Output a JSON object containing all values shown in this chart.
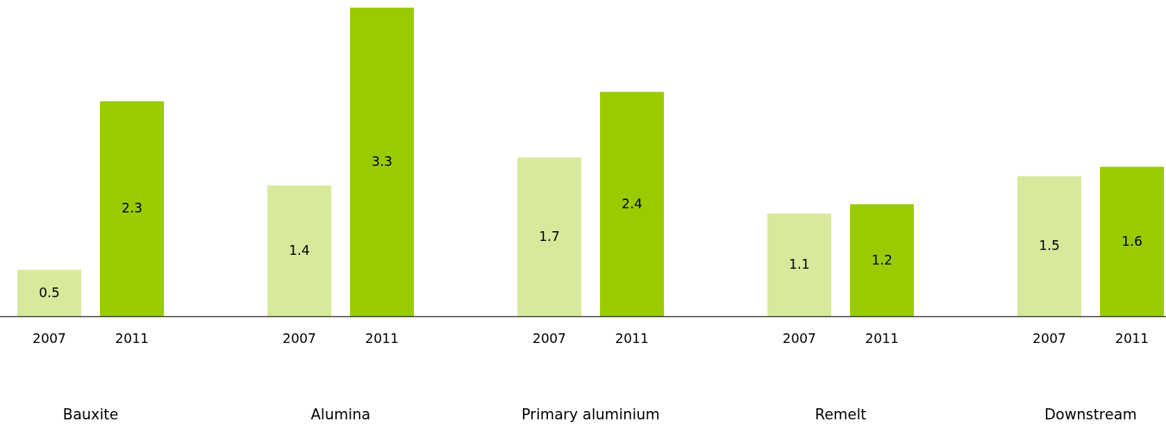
{
  "chart_data": {
    "type": "bar",
    "categories": [
      "Bauxite",
      "Alumina",
      "Primary aluminium",
      "Remelt",
      "Downstream"
    ],
    "series": [
      {
        "name": "2007",
        "color": "#d7e99b",
        "values": [
          0.5,
          1.4,
          1.7,
          1.1,
          1.5
        ]
      },
      {
        "name": "2011",
        "color": "#99cc00",
        "values": [
          2.3,
          3.3,
          2.4,
          1.2,
          1.6
        ]
      }
    ],
    "data_labels": true
  }
}
